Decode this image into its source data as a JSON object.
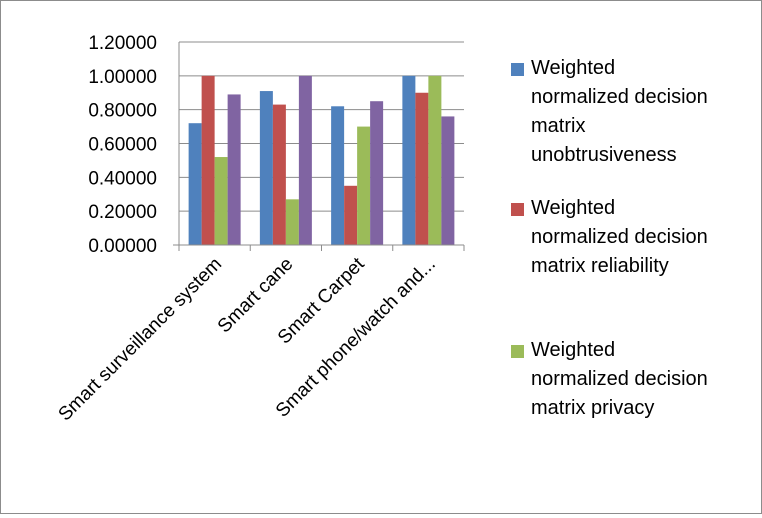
{
  "chart_data": {
    "type": "bar",
    "categories": [
      "Smart surveillance system",
      "Smart cane",
      "Smart Carpet",
      "Smart phone/watch and..."
    ],
    "series": [
      {
        "name": "Weighted normalized decision matrix unobtrusiveness",
        "color": "#4f81bd",
        "values": [
          0.72,
          0.91,
          0.82,
          1.0
        ]
      },
      {
        "name": "Weighted normalized decision matrix reliability",
        "color": "#c0504d",
        "values": [
          1.0,
          0.83,
          0.35,
          0.9
        ]
      },
      {
        "name": "Weighted normalized decision matrix privacy",
        "color": "#9bbb59",
        "values": [
          0.52,
          0.27,
          0.7,
          1.0
        ]
      },
      {
        "name": "",
        "color": "#8064a2",
        "values": [
          0.89,
          1.0,
          0.85,
          0.76
        ]
      }
    ],
    "y_ticks": [
      "0.00000",
      "0.20000",
      "0.40000",
      "0.60000",
      "0.80000",
      "1.00000",
      "1.20000"
    ],
    "ylim": [
      0,
      1.2
    ],
    "grid": true,
    "legend": [
      {
        "lines": [
          "Weighted",
          "normalized decision",
          "matrix",
          "unobtrusiveness"
        ]
      },
      {
        "lines": [
          "Weighted",
          "normalized decision",
          "matrix reliability"
        ]
      },
      {
        "lines": [
          "Weighted",
          "normalized decision",
          "matrix privacy"
        ]
      }
    ],
    "legend_position": "right"
  }
}
